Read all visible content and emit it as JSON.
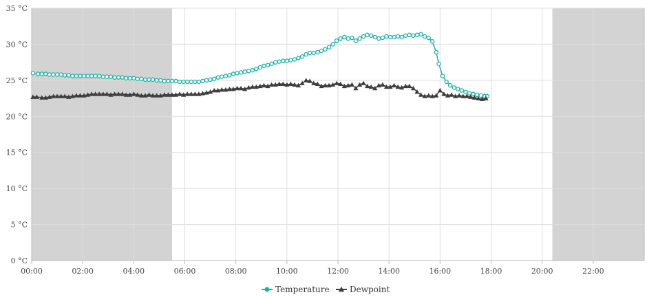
{
  "chart_data": {
    "type": "line",
    "x_unit": "hour of day",
    "xlim": [
      0,
      24
    ],
    "ylim": [
      0,
      35
    ],
    "x_ticks": [
      {
        "value": 0,
        "label": "00:00"
      },
      {
        "value": 2,
        "label": "02:00"
      },
      {
        "value": 4,
        "label": "04:00"
      },
      {
        "value": 6,
        "label": "06:00"
      },
      {
        "value": 8,
        "label": "08:00"
      },
      {
        "value": 10,
        "label": "10:00"
      },
      {
        "value": 12,
        "label": "12:00"
      },
      {
        "value": 14,
        "label": "14:00"
      },
      {
        "value": 16,
        "label": "16:00"
      },
      {
        "value": 18,
        "label": "18:00"
      },
      {
        "value": 20,
        "label": "20:00"
      },
      {
        "value": 22,
        "label": "22:00"
      }
    ],
    "y_ticks": [
      {
        "value": 0,
        "label": "0 °C"
      },
      {
        "value": 5,
        "label": "5 °C"
      },
      {
        "value": 10,
        "label": "10 °C"
      },
      {
        "value": 15,
        "label": "15 °C"
      },
      {
        "value": 20,
        "label": "20 °C"
      },
      {
        "value": 25,
        "label": "25 °C"
      },
      {
        "value": 30,
        "label": "30 °C"
      },
      {
        "value": 35,
        "label": "35 °C"
      }
    ],
    "night_bands": [
      [
        0,
        5.5
      ],
      [
        20.4,
        24
      ]
    ],
    "grid": true,
    "legend_position": "bottom-center",
    "series": [
      {
        "name": "Temperature",
        "color": "#1ab5a5",
        "marker": "circle",
        "points": [
          [
            0.05,
            26.0
          ],
          [
            0.25,
            25.9
          ],
          [
            0.4,
            25.9
          ],
          [
            0.55,
            25.9
          ],
          [
            0.7,
            25.8
          ],
          [
            0.85,
            25.8
          ],
          [
            1.0,
            25.8
          ],
          [
            1.15,
            25.8
          ],
          [
            1.3,
            25.7
          ],
          [
            1.45,
            25.7
          ],
          [
            1.6,
            25.6
          ],
          [
            1.75,
            25.6
          ],
          [
            1.9,
            25.6
          ],
          [
            2.05,
            25.6
          ],
          [
            2.2,
            25.6
          ],
          [
            2.35,
            25.6
          ],
          [
            2.5,
            25.6
          ],
          [
            2.65,
            25.6
          ],
          [
            2.8,
            25.5
          ],
          [
            2.95,
            25.5
          ],
          [
            3.1,
            25.5
          ],
          [
            3.25,
            25.4
          ],
          [
            3.4,
            25.4
          ],
          [
            3.55,
            25.4
          ],
          [
            3.7,
            25.3
          ],
          [
            3.85,
            25.3
          ],
          [
            4.0,
            25.3
          ],
          [
            4.15,
            25.2
          ],
          [
            4.3,
            25.2
          ],
          [
            4.45,
            25.1
          ],
          [
            4.6,
            25.1
          ],
          [
            4.75,
            25.1
          ],
          [
            4.9,
            25.0
          ],
          [
            5.05,
            25.0
          ],
          [
            5.2,
            24.9
          ],
          [
            5.35,
            24.9
          ],
          [
            5.5,
            24.9
          ],
          [
            5.65,
            24.9
          ],
          [
            5.8,
            24.8
          ],
          [
            5.95,
            24.8
          ],
          [
            6.1,
            24.8
          ],
          [
            6.25,
            24.8
          ],
          [
            6.4,
            24.8
          ],
          [
            6.55,
            24.8
          ],
          [
            6.7,
            24.9
          ],
          [
            6.85,
            25.0
          ],
          [
            7.0,
            25.1
          ],
          [
            7.15,
            25.2
          ],
          [
            7.3,
            25.4
          ],
          [
            7.45,
            25.5
          ],
          [
            7.6,
            25.6
          ],
          [
            7.75,
            25.7
          ],
          [
            7.9,
            25.9
          ],
          [
            8.05,
            26.0
          ],
          [
            8.2,
            26.1
          ],
          [
            8.35,
            26.2
          ],
          [
            8.5,
            26.3
          ],
          [
            8.65,
            26.4
          ],
          [
            8.8,
            26.6
          ],
          [
            8.95,
            26.8
          ],
          [
            9.1,
            27.0
          ],
          [
            9.25,
            27.1
          ],
          [
            9.4,
            27.3
          ],
          [
            9.55,
            27.5
          ],
          [
            9.7,
            27.6
          ],
          [
            9.85,
            27.7
          ],
          [
            10.0,
            27.7
          ],
          [
            10.15,
            27.8
          ],
          [
            10.3,
            27.9
          ],
          [
            10.45,
            28.1
          ],
          [
            10.6,
            28.3
          ],
          [
            10.75,
            28.6
          ],
          [
            10.9,
            28.8
          ],
          [
            11.05,
            28.8
          ],
          [
            11.2,
            28.9
          ],
          [
            11.35,
            29.1
          ],
          [
            11.5,
            29.3
          ],
          [
            11.65,
            29.6
          ],
          [
            11.8,
            30.0
          ],
          [
            11.95,
            30.5
          ],
          [
            12.1,
            30.8
          ],
          [
            12.25,
            31.0
          ],
          [
            12.4,
            30.8
          ],
          [
            12.55,
            30.9
          ],
          [
            12.7,
            30.5
          ],
          [
            12.85,
            30.8
          ],
          [
            13.0,
            31.1
          ],
          [
            13.15,
            31.3
          ],
          [
            13.3,
            31.2
          ],
          [
            13.45,
            31.0
          ],
          [
            13.6,
            30.8
          ],
          [
            13.75,
            30.9
          ],
          [
            13.9,
            31.1
          ],
          [
            14.05,
            31.0
          ],
          [
            14.2,
            31.0
          ],
          [
            14.35,
            31.1
          ],
          [
            14.5,
            31.0
          ],
          [
            14.65,
            31.2
          ],
          [
            14.8,
            31.3
          ],
          [
            14.95,
            31.2
          ],
          [
            15.1,
            31.3
          ],
          [
            15.25,
            31.4
          ],
          [
            15.4,
            31.1
          ],
          [
            15.55,
            30.9
          ],
          [
            15.7,
            30.4
          ],
          [
            15.85,
            28.9
          ],
          [
            15.95,
            27.3
          ],
          [
            16.1,
            25.6
          ],
          [
            16.25,
            24.8
          ],
          [
            16.4,
            24.3
          ],
          [
            16.55,
            24.0
          ],
          [
            16.7,
            23.8
          ],
          [
            16.85,
            23.6
          ],
          [
            17.0,
            23.4
          ],
          [
            17.15,
            23.2
          ],
          [
            17.3,
            23.1
          ],
          [
            17.45,
            23.0
          ],
          [
            17.6,
            22.9
          ],
          [
            17.75,
            22.8
          ],
          [
            17.85,
            22.8
          ]
        ]
      },
      {
        "name": "Dewpoint",
        "color": "#3d3d3d",
        "marker": "triangle",
        "points": [
          [
            0.05,
            22.7
          ],
          [
            0.2,
            22.7
          ],
          [
            0.4,
            22.6
          ],
          [
            0.55,
            22.6
          ],
          [
            0.7,
            22.7
          ],
          [
            0.85,
            22.8
          ],
          [
            1.0,
            22.8
          ],
          [
            1.15,
            22.8
          ],
          [
            1.3,
            22.8
          ],
          [
            1.45,
            22.7
          ],
          [
            1.6,
            22.8
          ],
          [
            1.75,
            22.9
          ],
          [
            1.9,
            22.9
          ],
          [
            2.05,
            22.9
          ],
          [
            2.2,
            23.0
          ],
          [
            2.35,
            23.1
          ],
          [
            2.5,
            23.1
          ],
          [
            2.65,
            23.1
          ],
          [
            2.8,
            23.1
          ],
          [
            2.95,
            23.1
          ],
          [
            3.1,
            23.0
          ],
          [
            3.25,
            23.1
          ],
          [
            3.4,
            23.1
          ],
          [
            3.55,
            23.1
          ],
          [
            3.7,
            23.0
          ],
          [
            3.85,
            23.0
          ],
          [
            4.0,
            23.1
          ],
          [
            4.15,
            23.0
          ],
          [
            4.3,
            22.9
          ],
          [
            4.45,
            22.9
          ],
          [
            4.6,
            23.0
          ],
          [
            4.75,
            22.9
          ],
          [
            4.9,
            22.9
          ],
          [
            5.05,
            22.9
          ],
          [
            5.2,
            23.0
          ],
          [
            5.35,
            23.0
          ],
          [
            5.5,
            23.0
          ],
          [
            5.65,
            23.0
          ],
          [
            5.8,
            23.1
          ],
          [
            5.95,
            23.0
          ],
          [
            6.1,
            23.1
          ],
          [
            6.25,
            23.1
          ],
          [
            6.4,
            23.1
          ],
          [
            6.55,
            23.1
          ],
          [
            6.7,
            23.2
          ],
          [
            6.85,
            23.3
          ],
          [
            7.0,
            23.4
          ],
          [
            7.15,
            23.6
          ],
          [
            7.3,
            23.6
          ],
          [
            7.45,
            23.7
          ],
          [
            7.6,
            23.7
          ],
          [
            7.75,
            23.8
          ],
          [
            7.9,
            23.8
          ],
          [
            8.05,
            23.9
          ],
          [
            8.2,
            23.9
          ],
          [
            8.35,
            23.8
          ],
          [
            8.5,
            24.0
          ],
          [
            8.65,
            24.1
          ],
          [
            8.8,
            24.1
          ],
          [
            8.95,
            24.2
          ],
          [
            9.1,
            24.3
          ],
          [
            9.25,
            24.2
          ],
          [
            9.4,
            24.4
          ],
          [
            9.55,
            24.4
          ],
          [
            9.7,
            24.5
          ],
          [
            9.85,
            24.5
          ],
          [
            10.0,
            24.4
          ],
          [
            10.15,
            24.5
          ],
          [
            10.3,
            24.4
          ],
          [
            10.45,
            24.3
          ],
          [
            10.6,
            24.6
          ],
          [
            10.75,
            25.0
          ],
          [
            10.9,
            24.9
          ],
          [
            11.05,
            24.6
          ],
          [
            11.2,
            24.5
          ],
          [
            11.35,
            24.2
          ],
          [
            11.5,
            24.3
          ],
          [
            11.65,
            24.3
          ],
          [
            11.8,
            24.4
          ],
          [
            11.95,
            24.6
          ],
          [
            12.1,
            24.5
          ],
          [
            12.25,
            24.2
          ],
          [
            12.4,
            24.3
          ],
          [
            12.55,
            24.4
          ],
          [
            12.7,
            23.9
          ],
          [
            12.85,
            24.4
          ],
          [
            13.0,
            24.6
          ],
          [
            13.15,
            24.2
          ],
          [
            13.3,
            24.1
          ],
          [
            13.45,
            23.9
          ],
          [
            13.6,
            24.3
          ],
          [
            13.75,
            24.4
          ],
          [
            13.9,
            24.1
          ],
          [
            14.05,
            24.1
          ],
          [
            14.2,
            24.3
          ],
          [
            14.35,
            24.1
          ],
          [
            14.5,
            24.0
          ],
          [
            14.65,
            24.2
          ],
          [
            14.8,
            24.2
          ],
          [
            14.95,
            23.9
          ],
          [
            15.1,
            23.4
          ],
          [
            15.25,
            23.0
          ],
          [
            15.4,
            22.8
          ],
          [
            15.55,
            22.9
          ],
          [
            15.7,
            22.8
          ],
          [
            15.85,
            22.9
          ],
          [
            16.0,
            23.6
          ],
          [
            16.15,
            23.1
          ],
          [
            16.3,
            22.9
          ],
          [
            16.45,
            23.0
          ],
          [
            16.6,
            22.8
          ],
          [
            16.75,
            22.9
          ],
          [
            16.9,
            22.8
          ],
          [
            17.05,
            22.8
          ],
          [
            17.2,
            22.7
          ],
          [
            17.35,
            22.6
          ],
          [
            17.5,
            22.5
          ],
          [
            17.65,
            22.4
          ],
          [
            17.8,
            22.5
          ]
        ]
      }
    ]
  }
}
